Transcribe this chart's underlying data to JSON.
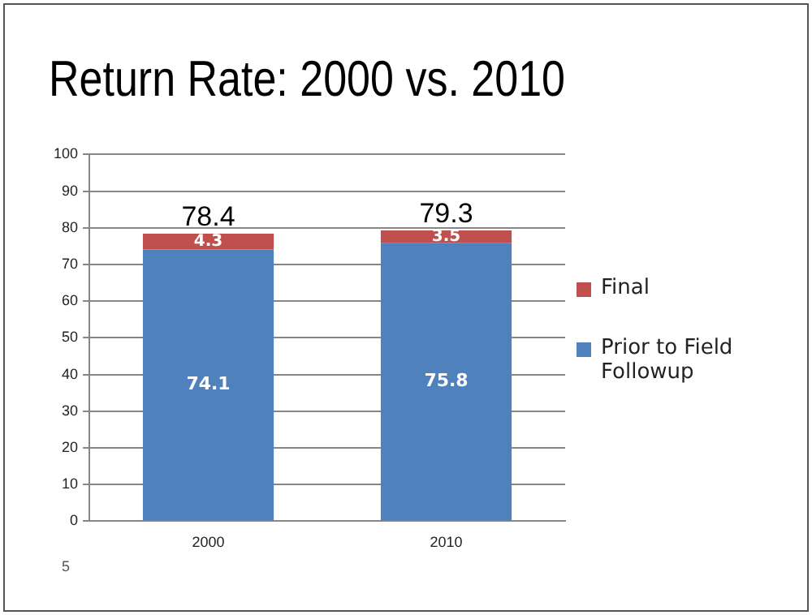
{
  "chart_data": {
    "type": "bar",
    "title": "Return Rate: 2000 vs. 2010",
    "categories": [
      "2000",
      "2010"
    ],
    "stacked": true,
    "series": [
      {
        "name": "Prior to Field Followup",
        "color": "#4f81bd",
        "values": [
          74.1,
          75.8
        ]
      },
      {
        "name": "Final",
        "color": "#c0504d",
        "values": [
          4.3,
          3.5
        ]
      }
    ],
    "totals": [
      "78.4",
      "79.3"
    ],
    "data_labels": true,
    "ylim": [
      0,
      100
    ],
    "yticks": [
      0,
      10,
      20,
      30,
      40,
      50,
      60,
      70,
      80,
      90,
      100
    ],
    "grid": "y",
    "legend": "right",
    "annotations": [
      "5"
    ]
  }
}
